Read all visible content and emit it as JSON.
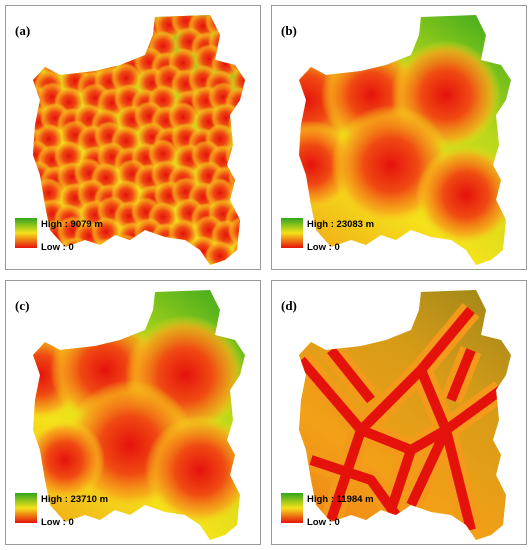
{
  "panels": [
    {
      "label": "(a)",
      "high": "High : 9079 m",
      "low": "Low : 0"
    },
    {
      "label": "(b)",
      "high": "High : 23083 m",
      "low": "Low : 0"
    },
    {
      "label": "(c)",
      "high": "High : 23710 m",
      "low": "Low : 0"
    },
    {
      "label": "(d)",
      "high": "High : 11984 m",
      "low": "Low : 0"
    }
  ]
}
